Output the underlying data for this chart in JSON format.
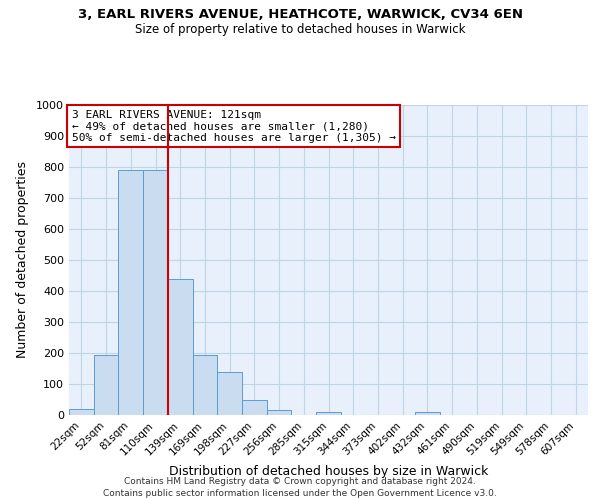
{
  "title1": "3, EARL RIVERS AVENUE, HEATHCOTE, WARWICK, CV34 6EN",
  "title2": "Size of property relative to detached houses in Warwick",
  "xlabel": "Distribution of detached houses by size in Warwick",
  "ylabel": "Number of detached properties",
  "bin_labels": [
    "22sqm",
    "52sqm",
    "81sqm",
    "110sqm",
    "139sqm",
    "169sqm",
    "198sqm",
    "227sqm",
    "256sqm",
    "285sqm",
    "315sqm",
    "344sqm",
    "373sqm",
    "402sqm",
    "432sqm",
    "461sqm",
    "490sqm",
    "519sqm",
    "549sqm",
    "578sqm",
    "607sqm"
  ],
  "bar_heights": [
    20,
    195,
    790,
    790,
    440,
    195,
    140,
    50,
    15,
    0,
    10,
    0,
    0,
    0,
    10,
    0,
    0,
    0,
    0,
    0,
    0
  ],
  "bar_color": "#c9dcf0",
  "bar_edge_color": "#5b9bd5",
  "vline_color": "#cc0000",
  "annotation_line1": "3 EARL RIVERS AVENUE: 121sqm",
  "annotation_line2": "← 49% of detached houses are smaller (1,280)",
  "annotation_line3": "50% of semi-detached houses are larger (1,305) →",
  "annotation_box_color": "#ffffff",
  "annotation_box_edge": "#cc0000",
  "ylim": [
    0,
    1000
  ],
  "yticks": [
    0,
    100,
    200,
    300,
    400,
    500,
    600,
    700,
    800,
    900,
    1000
  ],
  "grid_color": "#c0d4e8",
  "background_color": "#e8f1fb",
  "footer1": "Contains HM Land Registry data © Crown copyright and database right 2024.",
  "footer2": "Contains public sector information licensed under the Open Government Licence v3.0."
}
